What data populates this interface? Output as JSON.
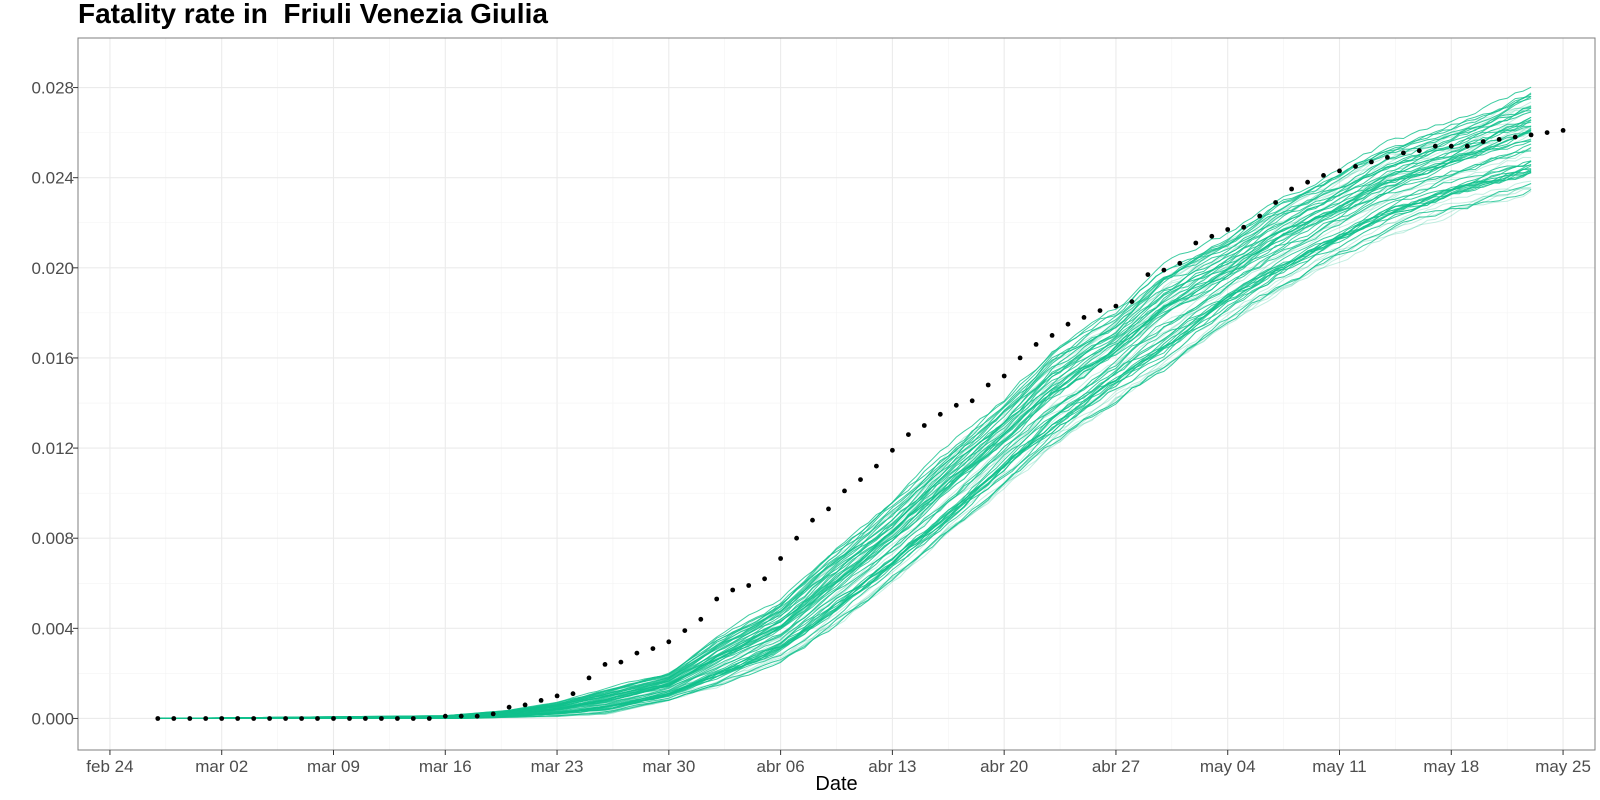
{
  "chart_data": {
    "type": "line",
    "title": "Fatality rate in  Friuli Venezia Giulia",
    "xlabel": "Date",
    "ylabel": "",
    "x_tick_labels": [
      "feb 24",
      "mar 02",
      "mar 09",
      "mar 16",
      "mar 23",
      "mar 30",
      "abr 06",
      "abr 13",
      "abr 20",
      "abr 27",
      "may 04",
      "may 11",
      "may 18",
      "may 25"
    ],
    "x_tick_dates": [
      "2020-02-24",
      "2020-03-02",
      "2020-03-09",
      "2020-03-16",
      "2020-03-23",
      "2020-03-30",
      "2020-04-06",
      "2020-04-13",
      "2020-04-20",
      "2020-04-27",
      "2020-05-04",
      "2020-05-11",
      "2020-05-18",
      "2020-05-25"
    ],
    "y_tick_labels": [
      "0.000",
      "0.004",
      "0.008",
      "0.012",
      "0.016",
      "0.020",
      "0.024",
      "0.028"
    ],
    "xlim": [
      "2020-02-22",
      "2020-05-27"
    ],
    "ylim": [
      -0.0014,
      0.0302
    ],
    "grid": true,
    "colors": {
      "simulation": "#10c08c",
      "observed": "#000000",
      "grid": "#ebebeb",
      "panel_border": "#7f7f7f"
    },
    "series": [
      {
        "type": "line",
        "description": "simulated trajectories (ensemble, approximate central band)",
        "x": [
          "2020-02-27",
          "2020-03-16",
          "2020-03-20",
          "2020-03-23",
          "2020-03-26",
          "2020-03-30",
          "2020-04-02",
          "2020-04-06",
          "2020-04-09",
          "2020-04-13",
          "2020-04-16",
          "2020-04-20",
          "2020-04-23",
          "2020-04-27",
          "2020-04-30",
          "2020-05-04",
          "2020-05-07",
          "2020-05-11",
          "2020-05-14",
          "2020-05-18",
          "2020-05-23"
        ],
        "low": [
          0,
          0,
          0.0001,
          0.0002,
          0.0004,
          0.001,
          0.0018,
          0.003,
          0.0045,
          0.0067,
          0.0085,
          0.011,
          0.0128,
          0.0148,
          0.0163,
          0.0183,
          0.0196,
          0.0211,
          0.0222,
          0.0232,
          0.0242
        ],
        "high": [
          0,
          0.0001,
          0.0003,
          0.0006,
          0.0011,
          0.0018,
          0.0032,
          0.0048,
          0.0067,
          0.009,
          0.011,
          0.0135,
          0.0156,
          0.0174,
          0.0193,
          0.0208,
          0.0222,
          0.0236,
          0.0248,
          0.0258,
          0.0272
        ]
      },
      {
        "type": "scatter",
        "description": "observed fatality rate",
        "x_start": "2020-02-27",
        "y": [
          0,
          0,
          0,
          0,
          0,
          0,
          0,
          0,
          0,
          0,
          0,
          0,
          0,
          0,
          0,
          0,
          0,
          0,
          0.0001,
          0.0001,
          0.0001,
          0.0002,
          0.0005,
          0.0006,
          0.0008,
          0.001,
          0.0011,
          0.0018,
          0.0024,
          0.0025,
          0.0029,
          0.0031,
          0.0034,
          0.0039,
          0.0044,
          0.0053,
          0.0057,
          0.0059,
          0.0062,
          0.0071,
          0.008,
          0.0088,
          0.0093,
          0.0101,
          0.0106,
          0.0112,
          0.0119,
          0.0126,
          0.013,
          0.0135,
          0.0139,
          0.0141,
          0.0148,
          0.0152,
          0.016,
          0.0166,
          0.017,
          0.0175,
          0.0178,
          0.0181,
          0.0183,
          0.0185,
          0.0197,
          0.0199,
          0.0202,
          0.0211,
          0.0214,
          0.0217,
          0.0218,
          0.0223,
          0.0229,
          0.0235,
          0.0238,
          0.0241,
          0.0243,
          0.0245,
          0.0247,
          0.0249,
          0.0251,
          0.0252,
          0.0254,
          0.0254,
          0.0254,
          0.0256,
          0.0257,
          0.0258,
          0.0259,
          0.026,
          0.0261
        ]
      }
    ]
  }
}
